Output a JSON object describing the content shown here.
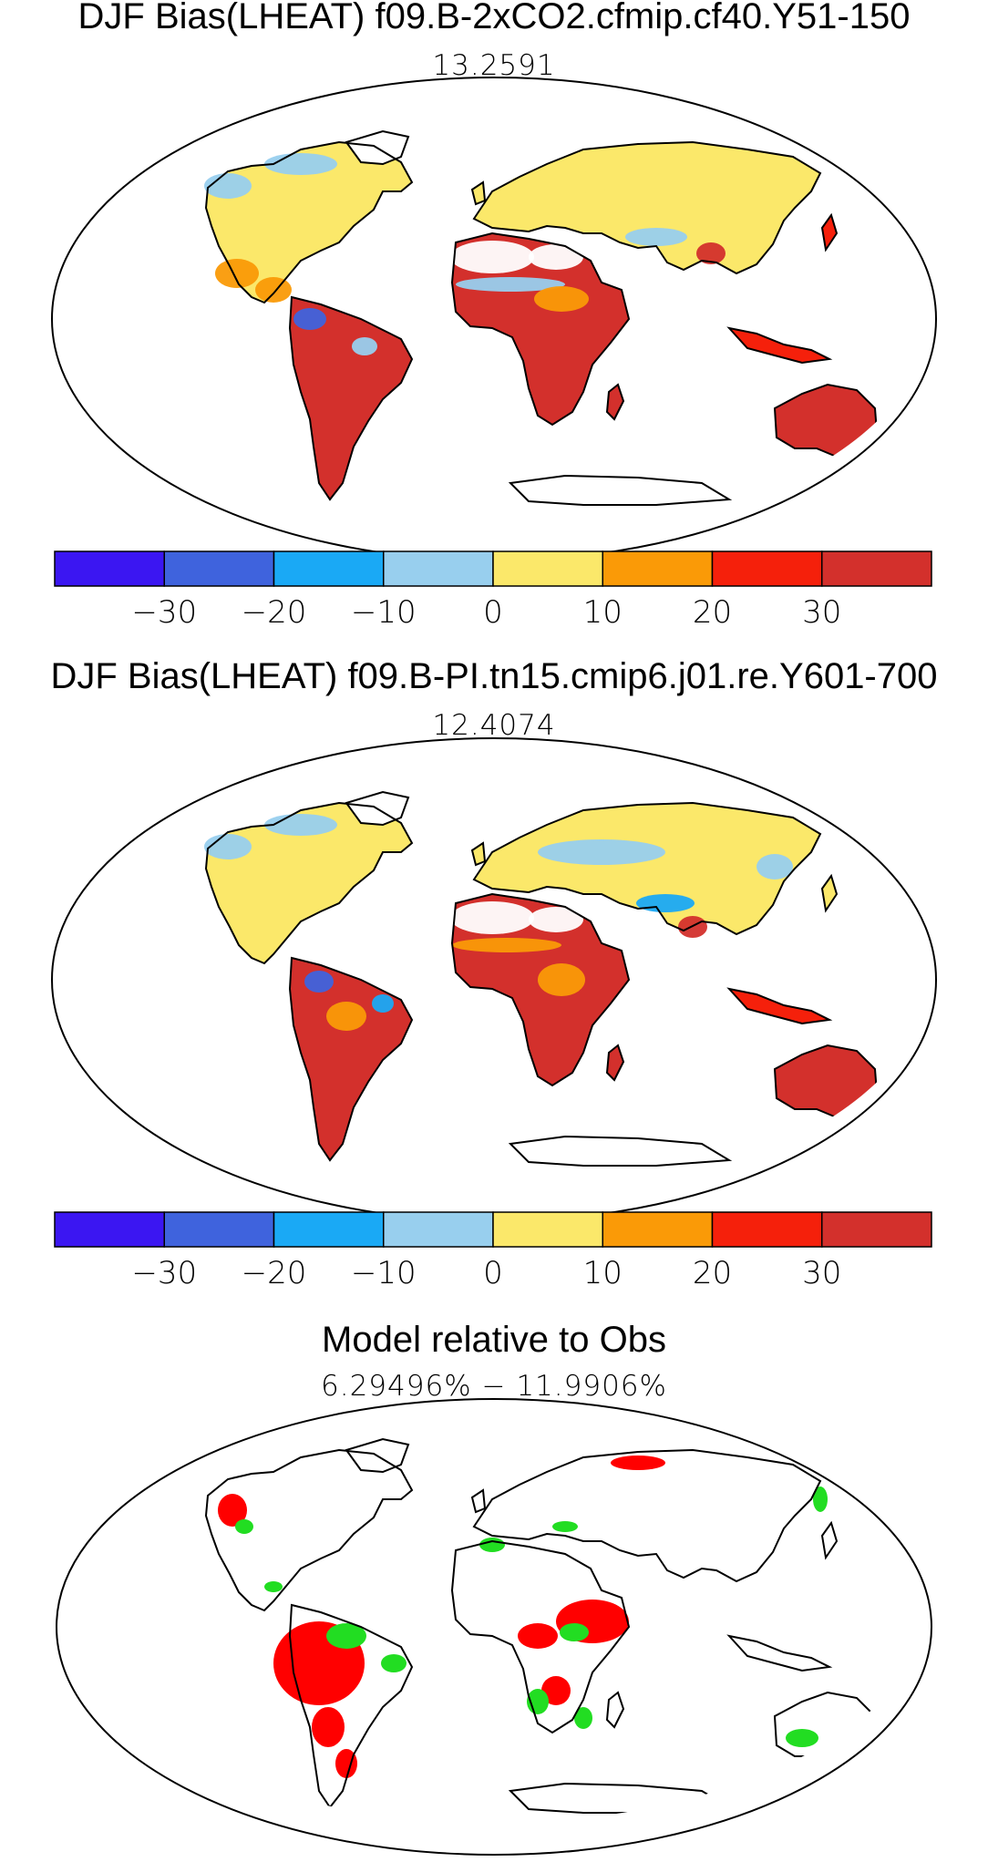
{
  "panels": [
    {
      "title": "DJF Bias(LHEAT) f09.B-2xCO2.cfmip.cf40.Y51-150",
      "subtitle": "13.2591"
    },
    {
      "title": "DJF Bias(LHEAT) f09.B-PI.tn15.cmip6.j01.re.Y601-700",
      "subtitle": "12.4074"
    },
    {
      "title": "Model relative to Obs",
      "subtitle": "6.29496% − 11.9906%"
    }
  ],
  "colorbar": {
    "colors": [
      "#3b16f2",
      "#3f63dd",
      "#1aa9f5",
      "#98cfee",
      "#fbe86a",
      "#fa9a07",
      "#f5200b",
      "#d3302c"
    ],
    "tick_labels": [
      "−30",
      "−20",
      "−10",
      "0",
      "10",
      "20",
      "30"
    ]
  },
  "significance_colors": {
    "higher": "#ff0000",
    "lower": "#22dd22"
  }
}
